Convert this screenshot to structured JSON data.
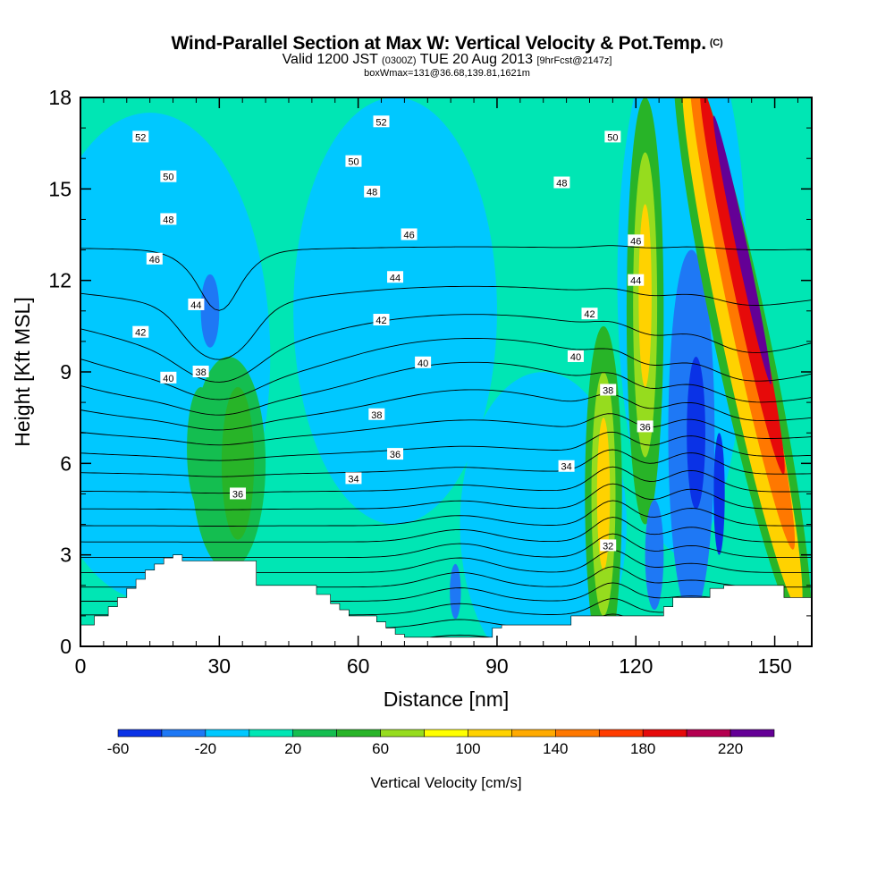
{
  "title": {
    "main": "Wind-Parallel Section at Max W: Vertical Velocity & Pot.Temp.",
    "copyright": "(C)",
    "valid_prefix": "Valid 1200 JST",
    "valid_utc": "(0300Z)",
    "valid_date": "TUE 20 Aug 2013",
    "valid_fcst": "[9hrFcst@2147z]",
    "box": "boxWmax=131@36.68,139.81,1621m"
  },
  "chart_data": {
    "type": "heatmap",
    "xlabel": "Distance [nm]",
    "ylabel": "Height [Kft MSL]",
    "xlim": [
      0,
      158
    ],
    "ylim": [
      0,
      18
    ],
    "x_ticks": [
      0,
      30,
      60,
      90,
      120,
      150
    ],
    "y_ticks": [
      0,
      3,
      6,
      9,
      12,
      15,
      18
    ],
    "colorbar": {
      "label": "Vertical Velocity [cm/s]",
      "levels": [
        -60,
        -40,
        -20,
        0,
        20,
        40,
        60,
        80,
        100,
        120,
        140,
        160,
        180,
        200,
        220,
        240
      ],
      "tick_labels": [
        "-60",
        "-20",
        "20",
        "60",
        "100",
        "140",
        "180",
        "220"
      ],
      "tick_values": [
        -60,
        -20,
        20,
        60,
        100,
        140,
        180,
        220
      ],
      "colors": [
        "#0a32e6",
        "#1e78f5",
        "#00c8ff",
        "#00e6b4",
        "#14be50",
        "#28b428",
        "#96dc1e",
        "#ffff00",
        "#ffd200",
        "#ffaa00",
        "#ff7800",
        "#ff3c00",
        "#e60a0a",
        "#b40050",
        "#640096"
      ]
    },
    "background_value": 10,
    "w_features": [
      {
        "x": 15,
        "y": 9.5,
        "rx": 26,
        "ry": 8,
        "rot": 0,
        "value": -10
      },
      {
        "x": 68,
        "y": 11,
        "rx": 22,
        "ry": 7,
        "rot": 0,
        "value": -10
      },
      {
        "x": 100,
        "y": 4,
        "rx": 18,
        "ry": 5,
        "rot": 0,
        "value": -10
      },
      {
        "x": 130,
        "y": 12,
        "rx": 14,
        "ry": 9,
        "rot": 0,
        "value": -10
      },
      {
        "x": 28,
        "y": 11,
        "rx": 2,
        "ry": 1.2,
        "rot": 0,
        "value": -30
      },
      {
        "x": 32,
        "y": 6,
        "rx": 8,
        "ry": 3.5,
        "rot": 0,
        "value": 30
      },
      {
        "x": 34,
        "y": 6,
        "rx": 3.5,
        "ry": 2.5,
        "rot": 0,
        "value": 50
      },
      {
        "x": 26,
        "y": 6.5,
        "rx": 3,
        "ry": 2,
        "rot": 0,
        "value": 30
      },
      {
        "x": 81,
        "y": 1.8,
        "rx": 1.2,
        "ry": 0.9,
        "rot": 0,
        "value": -30
      },
      {
        "x": 113,
        "y": 5,
        "rx": 4,
        "ry": 5.5,
        "rot": 0,
        "value": 40
      },
      {
        "x": 113,
        "y": 5,
        "rx": 2.6,
        "ry": 4,
        "rot": 0,
        "value": 70
      },
      {
        "x": 113,
        "y": 5,
        "rx": 1.4,
        "ry": 2.5,
        "rot": 0,
        "value": 100
      },
      {
        "x": 122,
        "y": 11,
        "rx": 4,
        "ry": 7,
        "rot": 0,
        "value": 40
      },
      {
        "x": 122,
        "y": 11.2,
        "rx": 2.6,
        "ry": 5,
        "rot": 0,
        "value": 70
      },
      {
        "x": 122,
        "y": 11.5,
        "rx": 1.4,
        "ry": 3,
        "rot": 0,
        "value": 100
      },
      {
        "x": 132,
        "y": 7,
        "rx": 5,
        "ry": 6,
        "rot": 0,
        "value": -30
      },
      {
        "x": 133,
        "y": 7,
        "rx": 2,
        "ry": 2.5,
        "rot": 0,
        "value": -50
      },
      {
        "x": 138,
        "y": 5,
        "rx": 1.2,
        "ry": 2,
        "rot": 0,
        "value": -50
      },
      {
        "x": 124,
        "y": 3,
        "rx": 2,
        "ry": 1.8,
        "rot": 0,
        "value": -30
      },
      {
        "x": 143,
        "y": 10,
        "rx": 6,
        "ry": 10,
        "rot": -12,
        "value": 40
      },
      {
        "x": 143,
        "y": 10,
        "rx": 4.2,
        "ry": 9,
        "rot": -12,
        "value": 100
      },
      {
        "x": 143,
        "y": 11,
        "rx": 3,
        "ry": 8,
        "rot": -12,
        "value": 140
      },
      {
        "x": 143,
        "y": 12,
        "rx": 2.2,
        "ry": 6.5,
        "rot": -12,
        "value": 180
      },
      {
        "x": 143,
        "y": 13,
        "rx": 1.2,
        "ry": 4.5,
        "rot": -12,
        "value": 220
      }
    ],
    "theta_contours": {
      "levels": [
        31,
        32,
        33,
        34,
        35,
        36,
        37,
        38,
        39,
        40,
        41,
        42,
        43,
        44,
        45,
        46,
        47,
        48,
        49,
        50,
        51,
        52,
        53,
        54
      ],
      "color": "#000000",
      "labels": [
        {
          "x": 13,
          "y": 16.7,
          "text": "52"
        },
        {
          "x": 19,
          "y": 15.4,
          "text": "50"
        },
        {
          "x": 19,
          "y": 14.0,
          "text": "48"
        },
        {
          "x": 16,
          "y": 12.7,
          "text": "46"
        },
        {
          "x": 25,
          "y": 11.2,
          "text": "44"
        },
        {
          "x": 13,
          "y": 10.3,
          "text": "42"
        },
        {
          "x": 19,
          "y": 8.8,
          "text": "40"
        },
        {
          "x": 26,
          "y": 9.0,
          "text": "38"
        },
        {
          "x": 34,
          "y": 5.0,
          "text": "36"
        },
        {
          "x": 65,
          "y": 17.2,
          "text": "52"
        },
        {
          "x": 59,
          "y": 15.9,
          "text": "50"
        },
        {
          "x": 63,
          "y": 14.9,
          "text": "48"
        },
        {
          "x": 71,
          "y": 13.5,
          "text": "46"
        },
        {
          "x": 68,
          "y": 12.1,
          "text": "44"
        },
        {
          "x": 65,
          "y": 10.7,
          "text": "42"
        },
        {
          "x": 74,
          "y": 9.3,
          "text": "40"
        },
        {
          "x": 64,
          "y": 7.6,
          "text": "38"
        },
        {
          "x": 68,
          "y": 6.3,
          "text": "36"
        },
        {
          "x": 59,
          "y": 5.5,
          "text": "34"
        },
        {
          "x": 115,
          "y": 16.7,
          "text": "50"
        },
        {
          "x": 104,
          "y": 15.2,
          "text": "48"
        },
        {
          "x": 120,
          "y": 13.3,
          "text": "46"
        },
        {
          "x": 120,
          "y": 12.0,
          "text": "44"
        },
        {
          "x": 110,
          "y": 10.9,
          "text": "42"
        },
        {
          "x": 107,
          "y": 9.5,
          "text": "40"
        },
        {
          "x": 114,
          "y": 8.4,
          "text": "38"
        },
        {
          "x": 122,
          "y": 7.2,
          "text": "36"
        },
        {
          "x": 105,
          "y": 5.9,
          "text": "34"
        },
        {
          "x": 114,
          "y": 3.3,
          "text": "32"
        }
      ]
    },
    "terrain": {
      "x": [
        0,
        3,
        3,
        6,
        6,
        8,
        8,
        10,
        10,
        12,
        12,
        14,
        14,
        16,
        16,
        18,
        18,
        20,
        20,
        22,
        22,
        38,
        38,
        51,
        51,
        54,
        54,
        56,
        56,
        58,
        58,
        60,
        60,
        64,
        64,
        66,
        66,
        68,
        68,
        70,
        70,
        73,
        73,
        89,
        89,
        91,
        91,
        106,
        106,
        126,
        126,
        128,
        128,
        136,
        136,
        139,
        139,
        152,
        152,
        158
      ],
      "y": [
        0.7,
        0.7,
        1.0,
        1.0,
        1.3,
        1.3,
        1.6,
        1.6,
        1.9,
        1.9,
        2.2,
        2.2,
        2.5,
        2.5,
        2.7,
        2.7,
        2.9,
        2.9,
        3.0,
        3.0,
        2.8,
        2.8,
        2.0,
        2.0,
        1.7,
        1.7,
        1.4,
        1.4,
        1.2,
        1.2,
        1.0,
        1.0,
        1.0,
        1.0,
        0.8,
        0.8,
        0.6,
        0.6,
        0.4,
        0.4,
        0.3,
        0.3,
        0.3,
        0.3,
        0.6,
        0.6,
        0.7,
        0.7,
        1.0,
        1.0,
        1.3,
        1.3,
        1.6,
        1.6,
        1.9,
        1.9,
        2.0,
        2.0,
        1.6,
        1.6
      ],
      "color": "#ffffff"
    }
  }
}
